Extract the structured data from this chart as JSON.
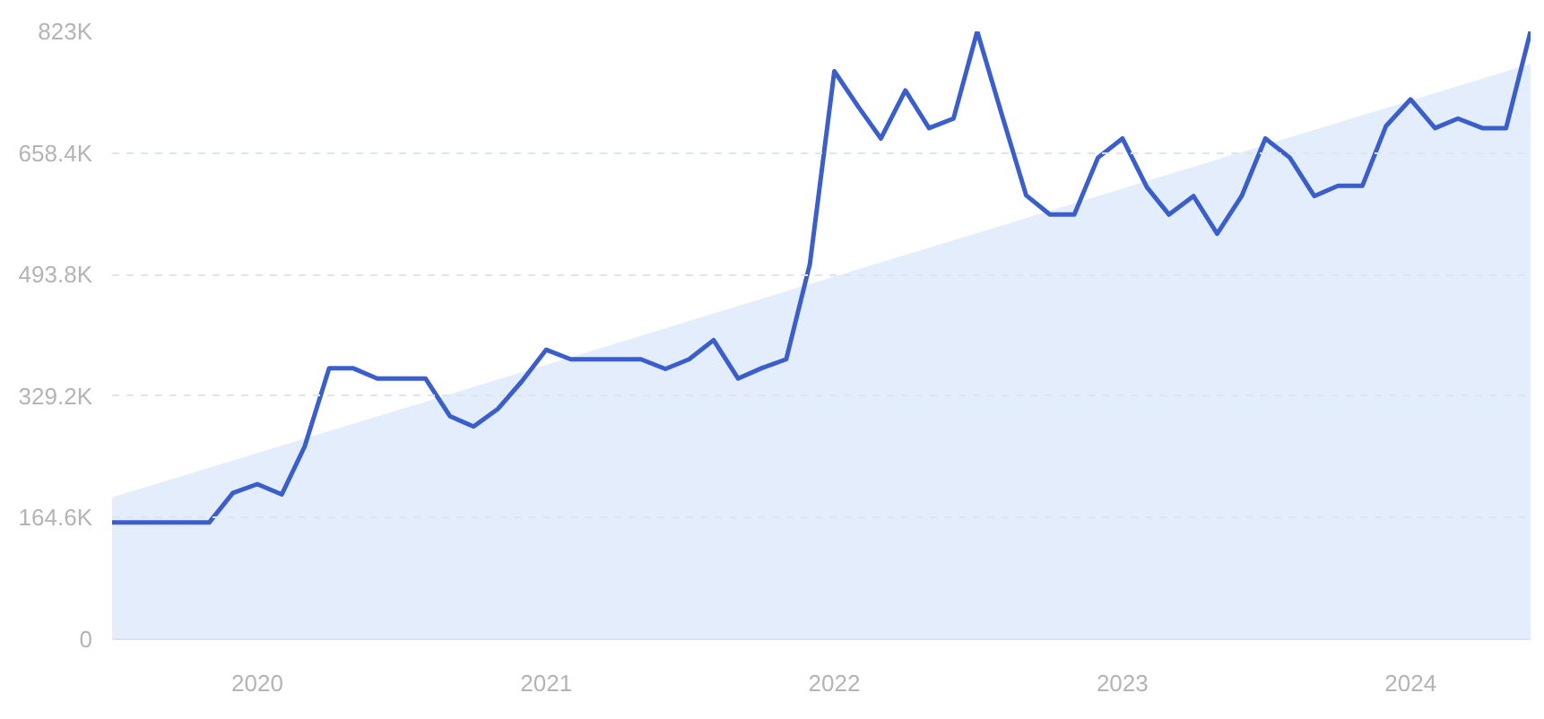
{
  "chart_data": {
    "type": "line",
    "x": [
      "2019-07",
      "2019-08",
      "2019-09",
      "2019-10",
      "2019-11",
      "2019-12",
      "2020-01",
      "2020-02",
      "2020-03",
      "2020-04",
      "2020-05",
      "2020-06",
      "2020-07",
      "2020-08",
      "2020-09",
      "2020-10",
      "2020-11",
      "2020-12",
      "2021-01",
      "2021-02",
      "2021-03",
      "2021-04",
      "2021-05",
      "2021-06",
      "2021-07",
      "2021-08",
      "2021-09",
      "2021-10",
      "2021-11",
      "2021-12",
      "2022-01",
      "2022-02",
      "2022-03",
      "2022-04",
      "2022-05",
      "2022-06",
      "2022-07",
      "2022-08",
      "2022-09",
      "2022-10",
      "2022-11",
      "2022-12",
      "2023-01",
      "2023-02",
      "2023-03",
      "2023-04",
      "2023-05",
      "2023-06",
      "2023-07",
      "2023-08",
      "2023-09",
      "2023-10",
      "2023-11",
      "2023-12",
      "2024-01",
      "2024-02",
      "2024-03",
      "2024-04",
      "2024-05",
      "2024-06"
    ],
    "series": [
      {
        "type": "area",
        "color": "#e4edfb",
        "x": [
          "2019-07",
          "2024-06"
        ],
        "values": [
          192000,
          779000
        ]
      },
      {
        "color": "#3a5fcd",
        "values": [
          158000,
          158000,
          158000,
          158000,
          158000,
          198000,
          210000,
          196000,
          261000,
          367000,
          367000,
          353000,
          353000,
          353000,
          302000,
          288000,
          312000,
          349000,
          392000,
          379000,
          379000,
          379000,
          379000,
          366000,
          379000,
          405000,
          353000,
          367000,
          379000,
          508000,
          769000,
          720000,
          678000,
          743000,
          692000,
          705000,
          823000,
          711000,
          601000,
          575000,
          575000,
          652000,
          678000,
          612000,
          575000,
          600000,
          549000,
          600000,
          678000,
          652000,
          600000,
          614000,
          614000,
          695000,
          731000,
          692000,
          705000,
          692000,
          692000,
          823000
        ]
      }
    ],
    "xlim": [
      "2019-07",
      "2024-06"
    ],
    "xticks": [
      "2020",
      "2021",
      "2022",
      "2023",
      "2024"
    ],
    "ylim": [
      0,
      823000
    ],
    "yticks": [
      {
        "value": 0,
        "label": "0"
      },
      {
        "value": 164600,
        "label": "164.6K"
      },
      {
        "value": 329200,
        "label": "329.2K"
      },
      {
        "value": 493800,
        "label": "493.8K"
      },
      {
        "value": 658400,
        "label": "658.4K"
      },
      {
        "value": 823000,
        "label": "823K"
      }
    ],
    "grid": "y",
    "line_style": "solid",
    "marker": "none"
  }
}
